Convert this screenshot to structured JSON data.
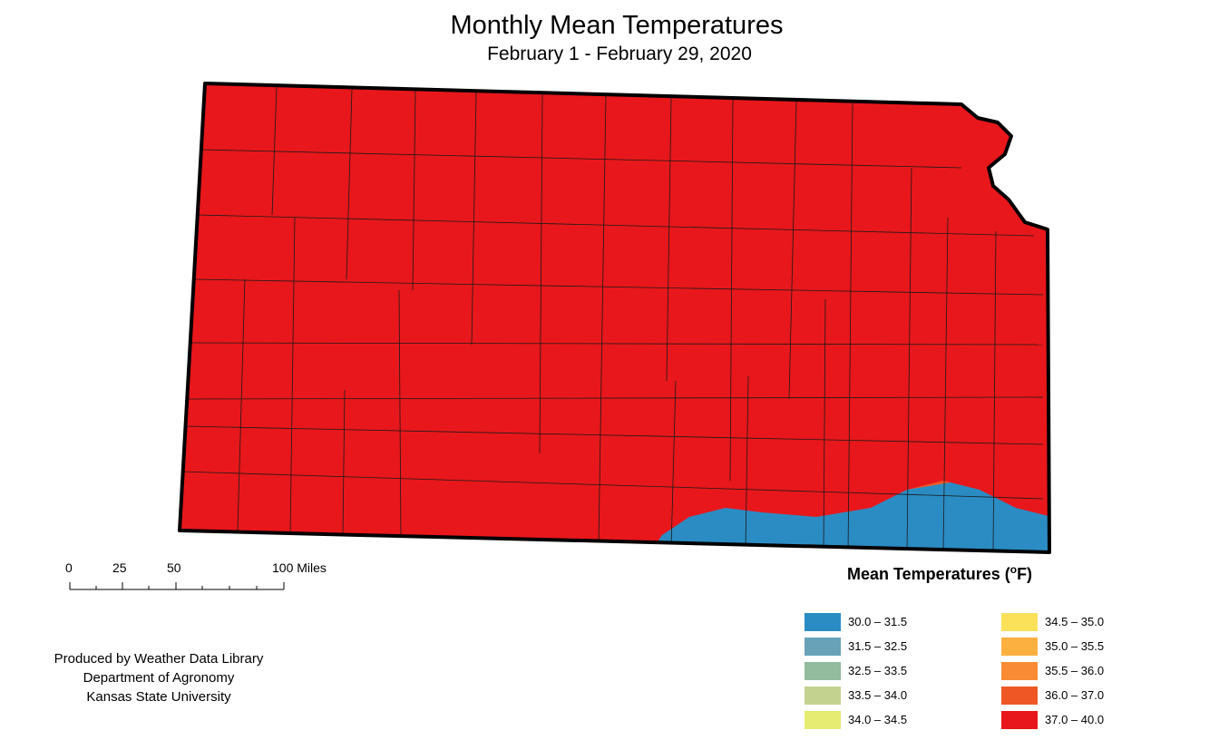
{
  "title": "Monthly Mean Temperatures",
  "subtitle": "February 1 - February 29, 2020",
  "legend": {
    "title": "Mean Temperatures (",
    "unit_degree": "o",
    "unit_rest": "F)",
    "items": [
      {
        "label": "30.0 – 31.5",
        "color": "#2b8cc4"
      },
      {
        "label": "31.5 – 32.5",
        "color": "#67a2b9"
      },
      {
        "label": "32.5 – 33.5",
        "color": "#93bc9e"
      },
      {
        "label": "33.5 – 34.0",
        "color": "#c3d38f"
      },
      {
        "label": "34.0 – 34.5",
        "color": "#e5ec71"
      },
      {
        "label": "34.5 – 35.0",
        "color": "#fbe05a"
      },
      {
        "label": "35.0 – 35.5",
        "color": "#fbb040"
      },
      {
        "label": "35.5 – 36.0",
        "color": "#f88b33"
      },
      {
        "label": "36.0 – 37.0",
        "color": "#ef5824"
      },
      {
        "label": "37.0 – 40.0",
        "color": "#e8171b"
      }
    ]
  },
  "scale_bar": {
    "ticks": [
      "0",
      "25",
      "50",
      "100 Miles"
    ]
  },
  "credits": {
    "line1": "Produced by Weather Data Library",
    "line2": "Department of Agronomy",
    "line3": "Kansas State University"
  }
}
